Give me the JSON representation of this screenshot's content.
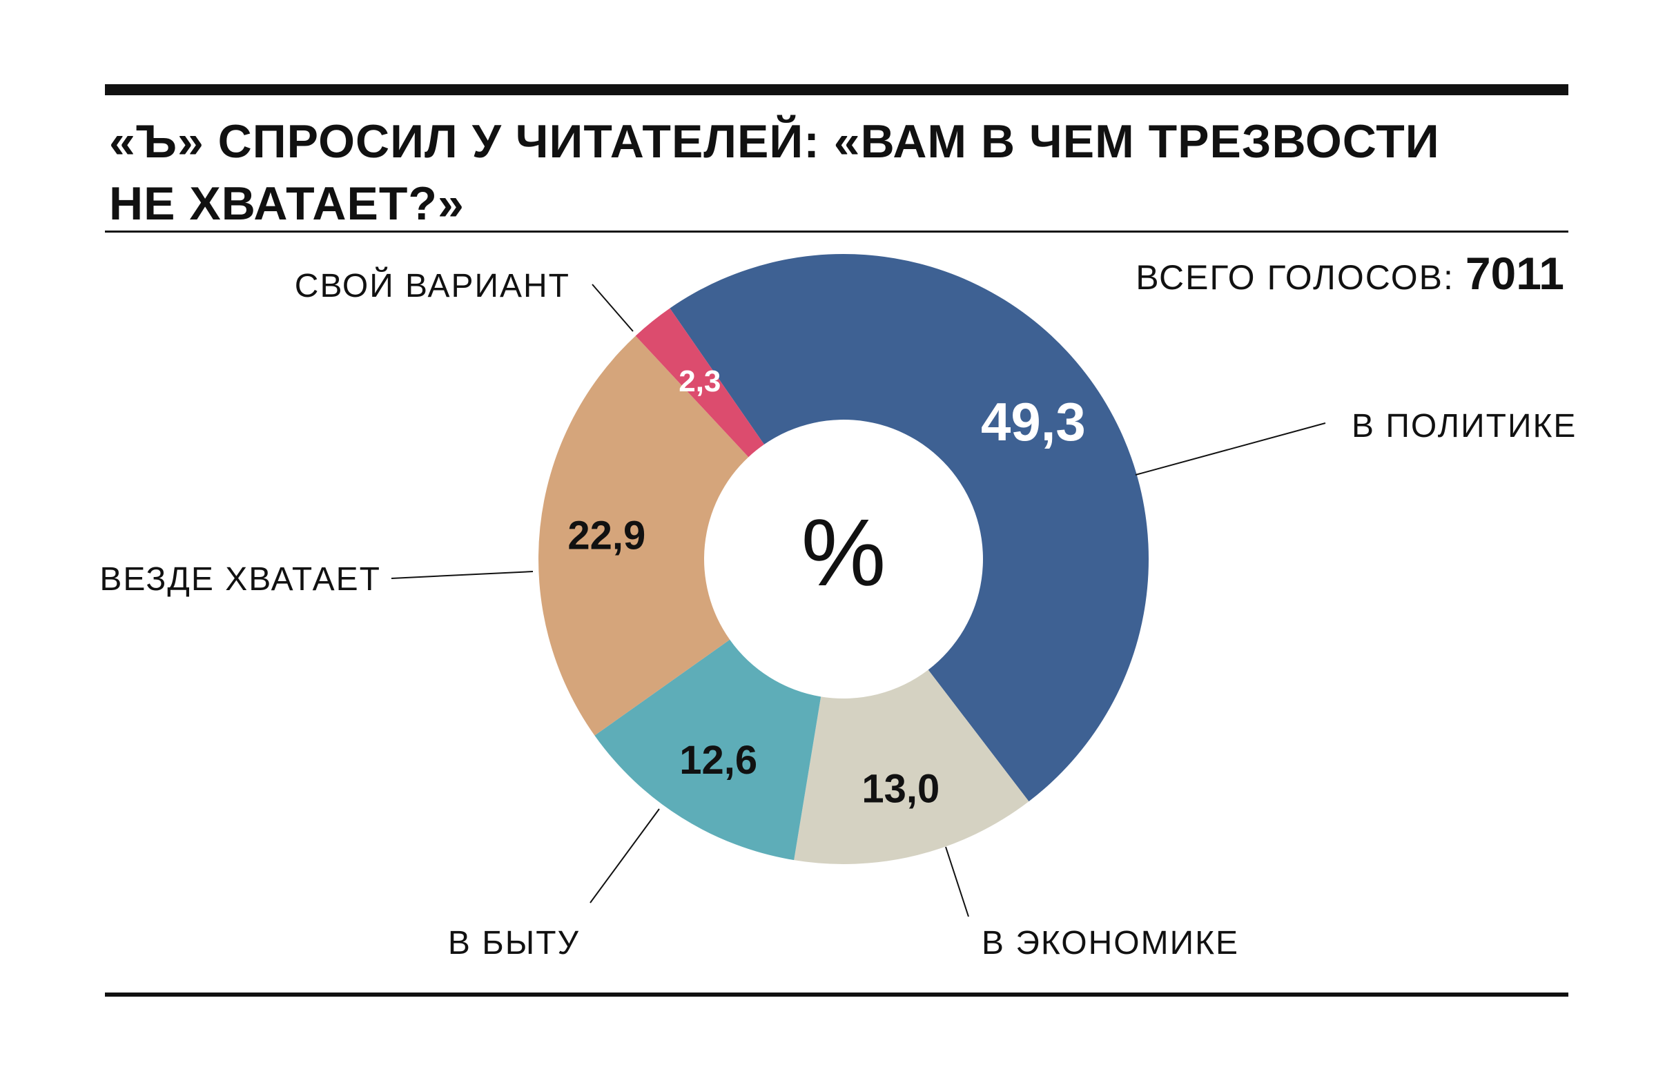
{
  "header": {
    "title_line1": "«Ъ» СПРОСИЛ У ЧИТАТЕЛЕЙ: «ВАМ В ЧЕМ ТРЕЗВОСТИ",
    "title_line2": "НЕ ХВАТАЕТ?»",
    "total_label": "ВСЕГО ГОЛОСОВ: ",
    "total_value": "7011"
  },
  "chart_data": {
    "type": "pie",
    "variant": "donut",
    "unit": "%",
    "categories": [
      "В ПОЛИТИКЕ",
      "В ЭКОНОМИКЕ",
      "В БЫТУ",
      "ВЕЗДЕ ХВАТАЕТ",
      "СВОЙ ВАРИАНТ"
    ],
    "values": [
      49.3,
      13.0,
      12.6,
      22.9,
      2.3
    ],
    "value_labels": [
      "49,3",
      "13,0",
      "12,6",
      "22,9",
      "2,3"
    ],
    "colors": [
      "#3e6193",
      "#d5d2c2",
      "#5eadb8",
      "#d5a57b",
      "#dc4c6e"
    ],
    "value_label_colors": [
      "#ffffff",
      "#111111",
      "#111111",
      "#111111",
      "#ffffff"
    ]
  }
}
